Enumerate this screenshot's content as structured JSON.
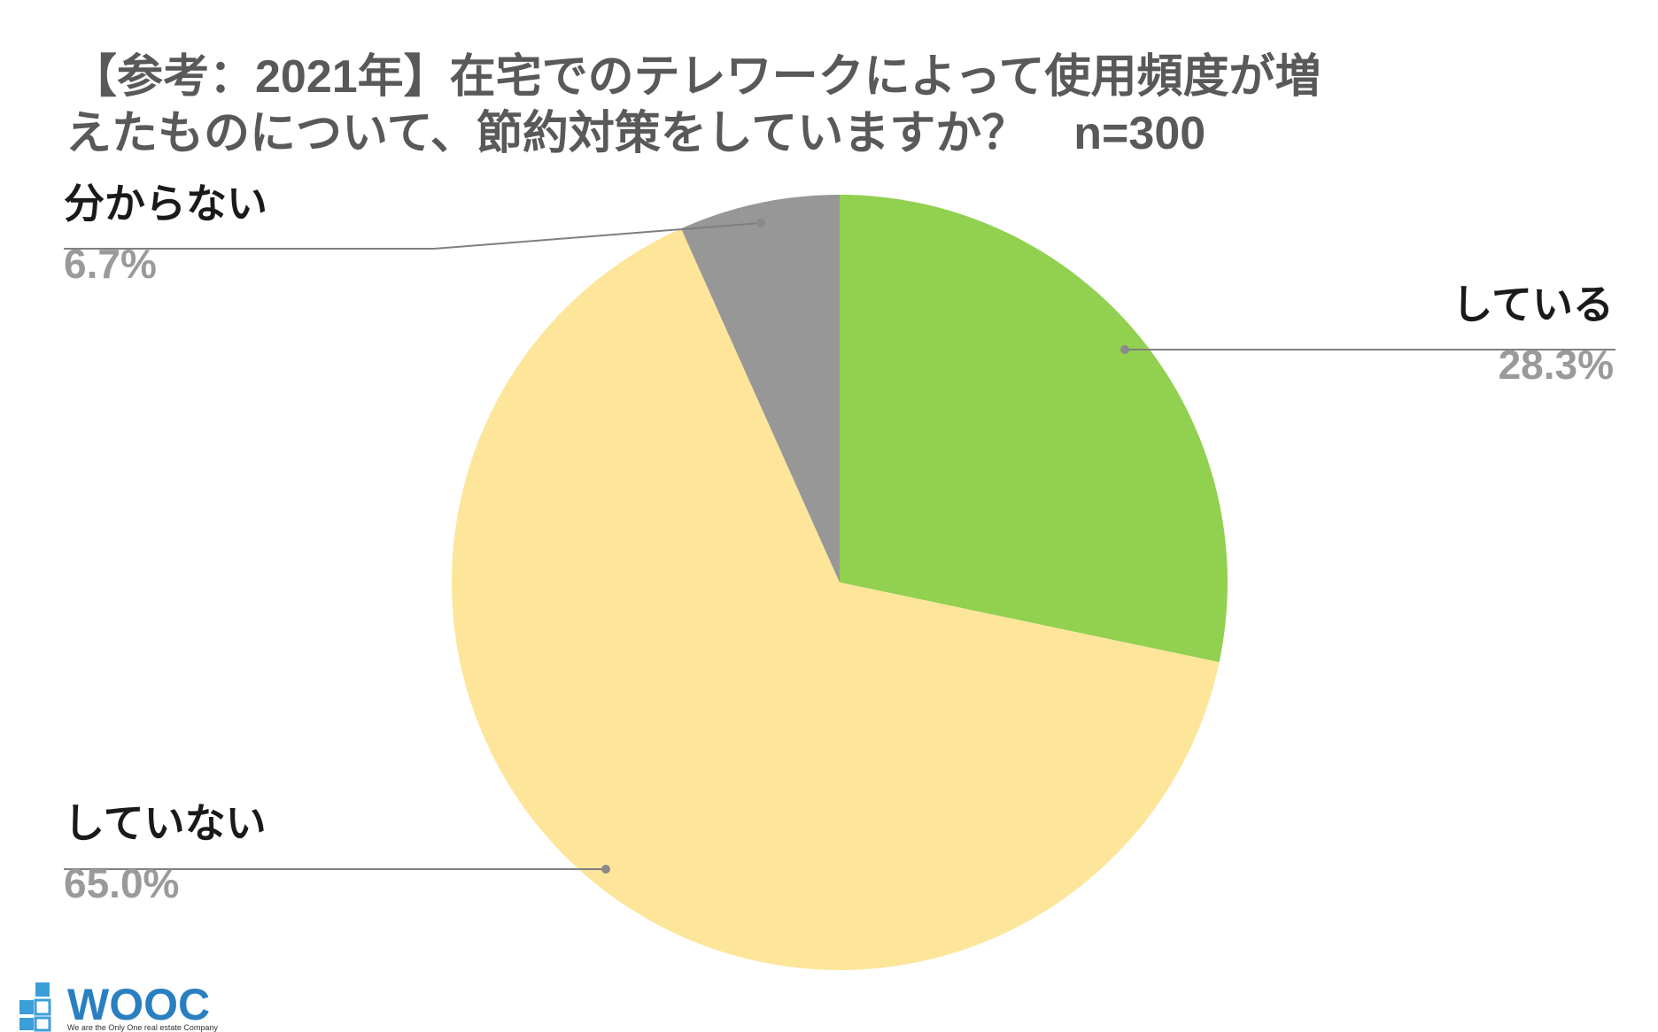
{
  "chart_data": {
    "type": "pie",
    "title": [
      "【参考：2021年】在宅でのテレワークによって使用頻度が増",
      "えたものについて、節約対策をしていますか？　n=300"
    ],
    "categories": [
      "している",
      "していない",
      "分からない"
    ],
    "values": [
      28.3,
      65.0,
      6.7
    ],
    "value_labels": [
      "28.3%",
      "65.0%",
      "6.7%"
    ],
    "colors": [
      "#92d050",
      "#fde59a",
      "#979797"
    ]
  },
  "logo": {
    "name": "WOOC",
    "tagline": "We are the Only One real estate Company"
  }
}
